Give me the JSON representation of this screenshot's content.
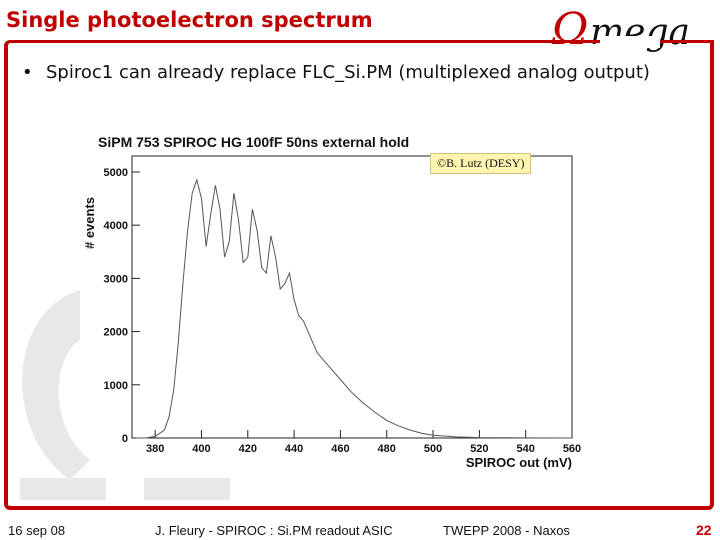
{
  "slide": {
    "title": "Single photoelectron spectrum",
    "logo_text": "Ωmega",
    "bullet": "Spiroc1 can already replace FLC_Si.PM (multiplexed analog output)",
    "credit": "©B. Lutz  (DESY)"
  },
  "footer": {
    "date": "16 sep 08",
    "center": "J. Fleury - SPIROC : Si.PM readout ASIC",
    "conference": "TWEPP 2008 - Naxos",
    "page": "22"
  },
  "colors": {
    "accent": "#c00000",
    "credit_bg": "#fff5b0"
  },
  "chart_data": {
    "type": "line",
    "title": "SiPM 753 SPIROC HG 100fF 50ns external hold",
    "xlabel": "SPIROC out (mV)",
    "ylabel": "# events",
    "xlim": [
      370,
      560
    ],
    "ylim": [
      0,
      5300
    ],
    "x_ticks": [
      380,
      400,
      420,
      440,
      460,
      480,
      500,
      520,
      540,
      560
    ],
    "y_ticks": [
      0,
      1000,
      2000,
      3000,
      4000,
      5000
    ],
    "grid": false,
    "series": [
      {
        "x": [
          372,
          376,
          380,
          384,
          386,
          388,
          390,
          392,
          394,
          396,
          398,
          400,
          402,
          404,
          406,
          408,
          410,
          412,
          414,
          416,
          418,
          420,
          422,
          424,
          426,
          428,
          430,
          432,
          434,
          436,
          438,
          440,
          442,
          444,
          446,
          448,
          450,
          455,
          460,
          465,
          470,
          475,
          480,
          485,
          490,
          495,
          500,
          510,
          520,
          540,
          560
        ],
        "y": [
          0,
          0,
          30,
          150,
          400,
          900,
          1800,
          2900,
          3900,
          4600,
          4850,
          4500,
          3600,
          4200,
          4750,
          4300,
          3400,
          3700,
          4600,
          4100,
          3300,
          3400,
          4300,
          3900,
          3200,
          3100,
          3800,
          3400,
          2800,
          2900,
          3100,
          2600,
          2300,
          2200,
          2000,
          1800,
          1600,
          1350,
          1100,
          850,
          650,
          480,
          330,
          230,
          150,
          90,
          50,
          20,
          8,
          2,
          0
        ]
      }
    ]
  }
}
